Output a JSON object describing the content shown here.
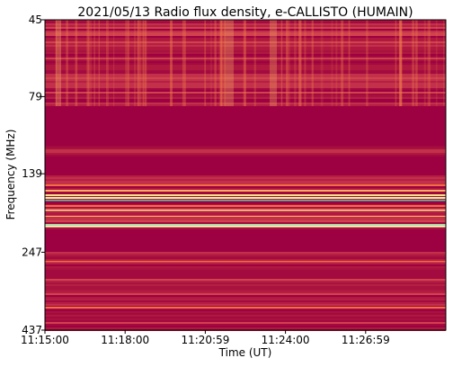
{
  "chart_data": {
    "type": "spectrogram",
    "title": "2021/05/13  Radio flux density, e-CALLISTO (HUMAIN)",
    "x_label": "Time (UT)",
    "y_label": "Frequency (MHz)",
    "xticks": [
      "11:15:00",
      "11:18:00",
      "11:20:59",
      "11:24:00",
      "11:26:59"
    ],
    "ylim": [
      45,
      437
    ],
    "yticks": [
      45,
      79,
      139,
      247,
      437
    ],
    "y_log": true,
    "y_inverted": true
  }
}
